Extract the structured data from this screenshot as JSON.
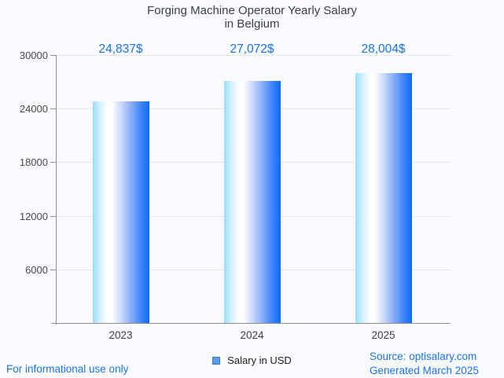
{
  "title": {
    "line1": "Forging Machine Operator Yearly Salary",
    "line2": "in Belgium"
  },
  "chart_data": {
    "type": "bar",
    "categories": [
      "2023",
      "2024",
      "2025"
    ],
    "series": [
      {
        "name": "Salary in USD",
        "values": [
          24837,
          27072,
          28004
        ]
      }
    ],
    "value_labels": [
      "24,837$",
      "27,072$",
      "28,004$"
    ],
    "title": "Forging Machine Operator Yearly Salary in Belgium",
    "xlabel": "",
    "ylabel": "",
    "ylim": [
      0,
      30000
    ],
    "yticks": [
      6000,
      12000,
      18000,
      24000,
      30000
    ],
    "grid": true,
    "legend_position": "bottom"
  },
  "legend": {
    "label": "Salary in USD"
  },
  "footer": {
    "left": "For informational use only",
    "source": "Source: optisalary.com",
    "generated": "Generated March 2025"
  },
  "colors": {
    "accent_blue": "#1a73e8",
    "title_text": "#3c4043",
    "tick_text": "#4a4a4a",
    "grid": "#e4e7ec",
    "axis": "#8f8f8f",
    "legend_marker_fill": "#5aa0e8",
    "legend_marker_border": "#3f72c8",
    "bar_gradient": [
      "#9adcfe 0%",
      "#c9eeff 10%",
      "#ffffff 26%",
      "#ffffff 34%",
      "#c4d4fb 52%",
      "#7fa9fa 70%",
      "#3c82f8 86%",
      "#0d6dfb 100%"
    ]
  }
}
